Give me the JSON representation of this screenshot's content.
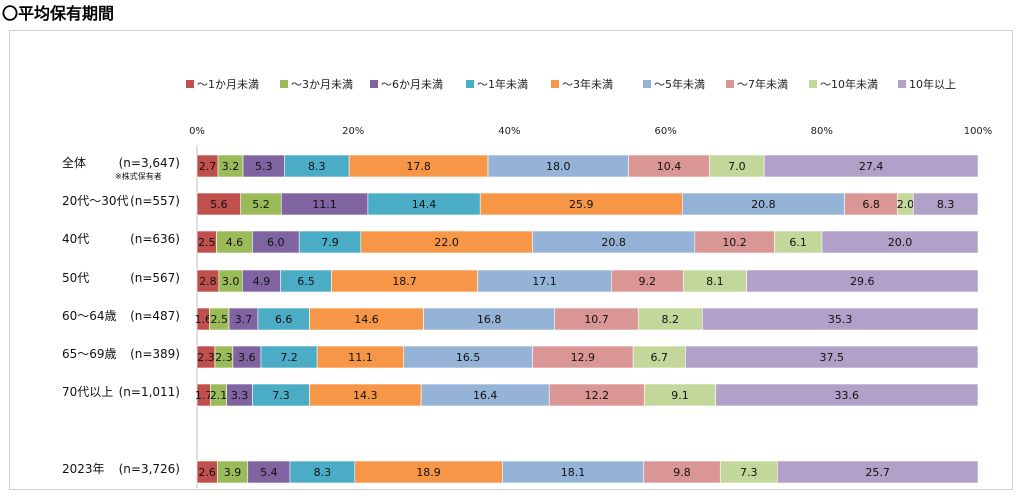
{
  "page": {
    "title": "〇平均保有期間"
  },
  "chart_data": {
    "type": "bar",
    "orientation": "horizontal",
    "stacked": true,
    "percent": true,
    "xlim": [
      0,
      100
    ],
    "xticks": [
      "0%",
      "20%",
      "40%",
      "60%",
      "80%",
      "100%"
    ],
    "legend_position": "top",
    "grid": false,
    "series": [
      {
        "name": "～1か月未満",
        "color": "#c0504d"
      },
      {
        "name": "～3か月未満",
        "color": "#9bbb59"
      },
      {
        "name": "～6か月未満",
        "color": "#8064a2"
      },
      {
        "name": "～1年未満",
        "color": "#4bacc6"
      },
      {
        "name": "～3年未満",
        "color": "#f79646"
      },
      {
        "name": "～5年未満",
        "color": "#95b3d7"
      },
      {
        "name": "～7年未満",
        "color": "#da9694"
      },
      {
        "name": "～10年未満",
        "color": "#c4d79b"
      },
      {
        "name": "10年以上",
        "color": "#b1a0c7"
      }
    ],
    "rows": [
      {
        "label": "全体",
        "n": "(n=3,647)",
        "note": "※株式保有者",
        "values": [
          2.7,
          3.2,
          5.3,
          8.3,
          17.8,
          18.0,
          10.4,
          7.0,
          27.4
        ]
      },
      {
        "label": "20代～30代",
        "n": "(n=557)",
        "values": [
          5.6,
          5.2,
          11.1,
          14.4,
          25.9,
          20.8,
          6.8,
          2.0,
          8.3
        ]
      },
      {
        "label": "40代",
        "n": "(n=636)",
        "values": [
          2.5,
          4.6,
          6.0,
          7.9,
          22.0,
          20.8,
          10.2,
          6.1,
          20.0
        ]
      },
      {
        "label": "50代",
        "n": "(n=567)",
        "values": [
          2.8,
          3.0,
          4.9,
          6.5,
          18.7,
          17.1,
          9.2,
          8.1,
          29.6
        ]
      },
      {
        "label": "60～64歳",
        "n": "(n=487)",
        "values": [
          1.6,
          2.5,
          3.7,
          6.6,
          14.6,
          16.8,
          10.7,
          8.2,
          35.3
        ]
      },
      {
        "label": "65～69歳",
        "n": "(n=389)",
        "values": [
          2.3,
          2.3,
          3.6,
          7.2,
          11.1,
          16.5,
          12.9,
          6.7,
          37.5
        ]
      },
      {
        "label": "70代以上",
        "n": "(n=1,011)",
        "values": [
          1.7,
          2.1,
          3.3,
          7.3,
          14.3,
          16.4,
          12.2,
          9.1,
          33.6
        ]
      },
      {
        "label": "2023年",
        "n": "(n=3,726)",
        "values": [
          2.6,
          3.9,
          5.4,
          8.3,
          18.9,
          18.1,
          9.8,
          7.3,
          25.7
        ]
      }
    ]
  }
}
